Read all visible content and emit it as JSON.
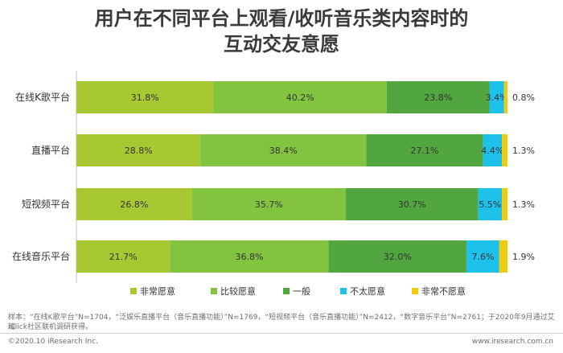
{
  "title_line1": "用户在不同平台上观看/收听音乐类内容时的",
  "title_line2": "互动交友意愿",
  "note_line1": "样本：“在线K歌平台”N=1704，“泛娱乐直播平台（音乐直播功能）”N=1769，“短视频平台（音乐直播功能）”N=2412，“数字音乐平台”N=2761；于2020年9月通过艾瑞",
  "note_line2": "iClick社区联机调研获得。",
  "footer_left": "©2020.10 iResearch Inc.",
  "footer_right": "www.iresearch.com.cn",
  "chart_data": {
    "type": "bar",
    "orientation": "horizontal",
    "stacked": true,
    "percent": true,
    "categories": [
      "在线K歌平台",
      "直播平台",
      "短视频平台",
      "在线音乐平台"
    ],
    "series": [
      {
        "name": "非常愿意",
        "color": "#a8c832",
        "values": [
          31.8,
          28.8,
          26.8,
          21.7
        ]
      },
      {
        "name": "比较愿意",
        "color": "#82c340",
        "values": [
          40.2,
          38.4,
          35.7,
          36.8
        ]
      },
      {
        "name": "一般",
        "color": "#52a640",
        "values": [
          23.8,
          27.1,
          30.7,
          32.0
        ]
      },
      {
        "name": "不太愿意",
        "color": "#1ec1ea",
        "values": [
          3.4,
          4.4,
          5.5,
          7.6
        ]
      },
      {
        "name": "非常不愿意",
        "color": "#f2cc0c",
        "values": [
          0.8,
          1.3,
          1.3,
          1.9
        ]
      }
    ],
    "labels": [
      [
        "31.8%",
        "40.2%",
        "23.8%",
        "3.4%",
        "0.8%"
      ],
      [
        "28.8%",
        "38.4%",
        "27.1%",
        "4.4%",
        "1.3%"
      ],
      [
        "26.8%",
        "35.7%",
        "30.7%",
        "5.5%",
        "1.3%"
      ],
      [
        "21.7%",
        "36.8%",
        "32.0%",
        "7.6%",
        "1.9%"
      ]
    ],
    "xlim": [
      0,
      100
    ],
    "legend_position": "bottom"
  }
}
